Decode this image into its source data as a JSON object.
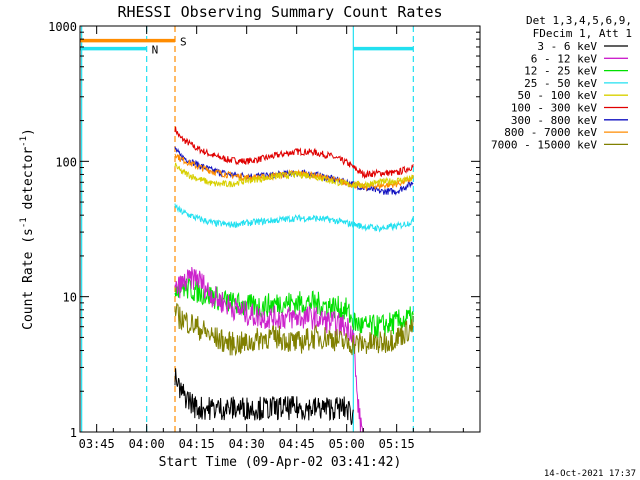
{
  "chart_data": {
    "type": "line",
    "title": "RHESSI Observing Summary Count Rates",
    "xlabel": "Start Time (09-Apr-02 03:41:42)",
    "ylabel_main": "Count Rate (s",
    "ylabel_sup1": "-1",
    "ylabel_mid": " detector",
    "ylabel_sup2": "-1",
    "ylabel_end": ")",
    "footer": "14-Oct-2021 17:37",
    "yscale": "log",
    "ylim": [
      1,
      1000
    ],
    "xlim_minutes": [
      -20,
      100
    ],
    "x_ticks": [
      {
        "t": -15,
        "label": "03:45"
      },
      {
        "t": 0,
        "label": "04:00"
      },
      {
        "t": 15,
        "label": "04:15"
      },
      {
        "t": 30,
        "label": "04:30"
      },
      {
        "t": 45,
        "label": "04:45"
      },
      {
        "t": 60,
        "label": "05:00"
      },
      {
        "t": 75,
        "label": "05:15"
      }
    ],
    "y_ticks": [
      {
        "v": 1,
        "label": "1"
      },
      {
        "v": 10,
        "label": "10"
      },
      {
        "v": 100,
        "label": "100"
      },
      {
        "v": 1000,
        "label": "1000"
      }
    ],
    "legend": {
      "header1": "Det 1,3,4,5,6,9,",
      "header2": "FDecim 1, Att 1",
      "items": [
        {
          "label": "3 - 6 keV",
          "color": "#000000"
        },
        {
          "label": "6 - 12 keV",
          "color": "#cc22cc"
        },
        {
          "label": "12 - 25 keV",
          "color": "#00e000"
        },
        {
          "label": "25 - 50 keV",
          "color": "#22e0f0"
        },
        {
          "label": "50 - 100 keV",
          "color": "#d8d000"
        },
        {
          "label": "100 - 300 keV",
          "color": "#e00000"
        },
        {
          "label": "300 - 800 keV",
          "color": "#1010c0"
        },
        {
          "label": "800 - 7000 keV",
          "color": "#ff8c00"
        },
        {
          "label": "7000 - 15000 keV",
          "color": "#808000"
        }
      ]
    },
    "flags": [
      {
        "label": "S",
        "color": "#ff8c00",
        "t_start": -20,
        "t_end": 8.5,
        "y": 780
      },
      {
        "label": "N",
        "color": "#22e0f0",
        "t_start": -20,
        "t_end": 0,
        "y": 680
      },
      {
        "label": "",
        "color": "#22e0f0",
        "t_start": 62,
        "t_end": 80,
        "y": 680
      }
    ],
    "markers": [
      {
        "t": -19.5,
        "color": "#22e0f0",
        "style": "solid"
      },
      {
        "t": 0,
        "color": "#22e0f0",
        "style": "dashed"
      },
      {
        "t": 8.5,
        "color": "#ff8c00",
        "style": "dashed"
      },
      {
        "t": 62,
        "color": "#22e0f0",
        "style": "solid"
      },
      {
        "t": 80,
        "color": "#22e0f0",
        "style": "dashed"
      }
    ],
    "series": [
      {
        "name": "100 - 300 keV",
        "color": "#e00000",
        "t": [
          8.5,
          10,
          15,
          20,
          25,
          30,
          35,
          40,
          45,
          50,
          55,
          60,
          65,
          70,
          75,
          80
        ],
        "values": [
          175,
          150,
          125,
          110,
          102,
          100,
          105,
          112,
          118,
          117,
          110,
          98,
          80,
          82,
          82,
          92
        ]
      },
      {
        "name": "300 - 800 keV",
        "color": "#1010c0",
        "t": [
          8.5,
          10,
          15,
          20,
          25,
          30,
          35,
          40,
          45,
          50,
          55,
          60,
          65,
          70,
          75,
          80
        ],
        "values": [
          125,
          110,
          95,
          85,
          80,
          78,
          78,
          80,
          82,
          80,
          75,
          70,
          64,
          60,
          60,
          70
        ]
      },
      {
        "name": "800 - 7000 keV",
        "color": "#ff8c00",
        "t": [
          8.5,
          10,
          15,
          20,
          25,
          30,
          35,
          40,
          45,
          50,
          55,
          60,
          65,
          70,
          75,
          80
        ],
        "values": [
          115,
          105,
          92,
          84,
          79,
          76,
          76,
          79,
          82,
          79,
          74,
          69,
          65,
          66,
          68,
          75
        ]
      },
      {
        "name": "50 - 100 keV",
        "color": "#d8d000",
        "t": [
          8.5,
          10,
          15,
          20,
          25,
          30,
          35,
          40,
          45,
          50,
          55,
          60,
          65,
          70,
          75,
          80
        ],
        "values": [
          95,
          85,
          75,
          68,
          68,
          72,
          75,
          78,
          80,
          78,
          72,
          68,
          67,
          70,
          72,
          75
        ]
      },
      {
        "name": "25 - 50 keV",
        "color": "#22e0f0",
        "t": [
          8.5,
          10,
          15,
          20,
          25,
          30,
          35,
          40,
          45,
          50,
          55,
          60,
          65,
          70,
          75,
          80
        ],
        "values": [
          47,
          43,
          38,
          35,
          34,
          35,
          36,
          37,
          38,
          38,
          37,
          35,
          33,
          32,
          33,
          36
        ]
      },
      {
        "name": "12 - 25 keV",
        "color": "#00e000",
        "t": [
          8.5,
          10,
          15,
          20,
          25,
          30,
          35,
          40,
          45,
          50,
          55,
          60,
          62,
          65,
          70,
          75,
          80
        ],
        "values": [
          12,
          12,
          11,
          10,
          9,
          8.5,
          8.5,
          9,
          9,
          9,
          8.5,
          8,
          6.5,
          6,
          6,
          6.5,
          7
        ]
      },
      {
        "name": "6 - 12 keV",
        "color": "#cc22cc",
        "t": [
          8.5,
          10,
          12,
          15,
          20,
          25,
          30,
          35,
          40,
          45,
          50,
          55,
          60,
          62,
          63,
          64,
          65
        ],
        "values": [
          11,
          12,
          13,
          14,
          10,
          8.5,
          7.5,
          7,
          7,
          7,
          7,
          6.5,
          6,
          5.5,
          2,
          1.2,
          1
        ]
      },
      {
        "name": "7000 - 15000 keV",
        "color": "#808000",
        "t": [
          8.5,
          10,
          15,
          20,
          25,
          30,
          35,
          40,
          45,
          50,
          55,
          60,
          65,
          70,
          75,
          80
        ],
        "values": [
          7.5,
          7,
          6,
          5,
          4.5,
          4.5,
          5,
          5,
          4.5,
          5,
          5,
          4.5,
          4.5,
          4.5,
          5,
          6
        ]
      },
      {
        "name": "3 - 6 keV",
        "color": "#000000",
        "t": [
          8.5,
          10,
          12,
          15,
          20,
          25,
          30,
          35,
          40,
          45,
          50,
          55,
          60,
          62
        ],
        "values": [
          2.5,
          2,
          1.8,
          1.5,
          1.5,
          1.5,
          1.5,
          1.5,
          1.5,
          1.5,
          1.5,
          1.5,
          1.5,
          1.3
        ]
      }
    ]
  }
}
